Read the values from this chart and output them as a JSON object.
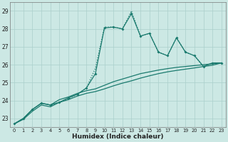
{
  "xlabel": "Humidex (Indice chaleur)",
  "bg_color": "#cce8e4",
  "grid_color": "#aacfcb",
  "line_color": "#1a7a6e",
  "xlim": [
    -0.5,
    23.5
  ],
  "ylim": [
    22.5,
    29.5
  ],
  "yticks": [
    23,
    24,
    25,
    26,
    27,
    28,
    29
  ],
  "xticks": [
    0,
    1,
    2,
    3,
    4,
    5,
    6,
    7,
    8,
    9,
    10,
    11,
    12,
    13,
    14,
    15,
    16,
    17,
    18,
    19,
    20,
    21,
    22,
    23
  ],
  "series_dotted": {
    "x": [
      0,
      1,
      2,
      3,
      4,
      5,
      6,
      7,
      8,
      9,
      10,
      11,
      12,
      13,
      14,
      15,
      16,
      17,
      18,
      19,
      20,
      21,
      22,
      23
    ],
    "y": [
      22.7,
      23.0,
      23.5,
      23.85,
      23.75,
      23.9,
      24.1,
      24.35,
      24.7,
      25.8,
      28.1,
      28.1,
      28.0,
      29.0,
      27.6,
      27.75,
      26.7,
      26.5,
      27.5,
      26.7,
      26.5,
      25.9,
      26.1,
      26.1
    ]
  },
  "series_markers": {
    "x": [
      0,
      1,
      2,
      3,
      4,
      5,
      6,
      7,
      8,
      9,
      10,
      11,
      12,
      13,
      14,
      15,
      16,
      17,
      18,
      19,
      20,
      21,
      22,
      23
    ],
    "y": [
      22.7,
      23.0,
      23.5,
      23.85,
      23.75,
      23.9,
      24.15,
      24.35,
      24.7,
      25.5,
      28.05,
      28.1,
      28.0,
      28.85,
      27.6,
      27.75,
      26.7,
      26.5,
      27.5,
      26.7,
      26.5,
      25.9,
      26.1,
      26.1
    ]
  },
  "series_upper": {
    "x": [
      0,
      1,
      2,
      3,
      4,
      5,
      6,
      7,
      8,
      9,
      10,
      11,
      12,
      13,
      14,
      15,
      16,
      17,
      18,
      19,
      20,
      21,
      22,
      23
    ],
    "y": [
      22.7,
      23.0,
      23.5,
      23.85,
      23.75,
      24.05,
      24.2,
      24.4,
      24.55,
      24.65,
      24.85,
      25.05,
      25.2,
      25.35,
      25.5,
      25.6,
      25.7,
      25.78,
      25.85,
      25.9,
      25.95,
      26.0,
      26.05,
      26.1
    ]
  },
  "series_lower": {
    "x": [
      0,
      1,
      2,
      3,
      4,
      5,
      6,
      7,
      8,
      9,
      10,
      11,
      12,
      13,
      14,
      15,
      16,
      17,
      18,
      19,
      20,
      21,
      22,
      23
    ],
    "y": [
      22.7,
      22.95,
      23.4,
      23.75,
      23.65,
      23.9,
      24.05,
      24.25,
      24.4,
      24.5,
      24.65,
      24.82,
      24.97,
      25.1,
      25.25,
      25.38,
      25.5,
      25.6,
      25.68,
      25.75,
      25.82,
      25.9,
      25.97,
      26.1
    ]
  }
}
